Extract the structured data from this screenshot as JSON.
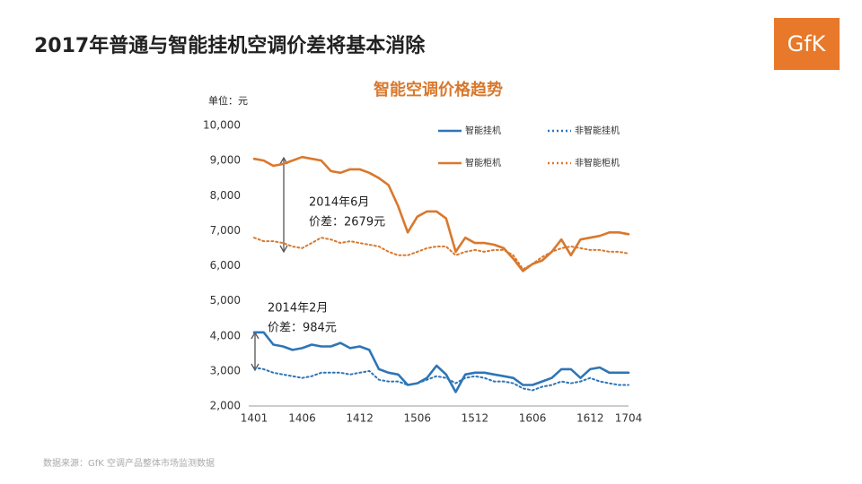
{
  "header": {
    "title": "2017年普通与智能挂机空调价差将基本消除",
    "logo": "GfK"
  },
  "chart_data": {
    "type": "line",
    "title": "智能空调价格趋势",
    "unit_label": "单位：元",
    "categories": [
      "1401",
      null,
      null,
      null,
      null,
      "1406",
      null,
      null,
      null,
      null,
      null,
      "1412",
      null,
      null,
      null,
      null,
      null,
      "1506",
      null,
      null,
      null,
      null,
      null,
      "1512",
      null,
      null,
      null,
      null,
      null,
      "1606",
      null,
      null,
      null,
      null,
      null,
      "1612",
      null,
      null,
      null,
      "1704"
    ],
    "ylim": [
      2000,
      10000
    ],
    "yticks": [
      {
        "value": 2000,
        "label": "2,000"
      },
      {
        "value": 3000,
        "label": "3,000"
      },
      {
        "value": 4000,
        "label": "4,000"
      },
      {
        "value": 5000,
        "label": "5,000"
      },
      {
        "value": 6000,
        "label": "6,000"
      },
      {
        "value": 7000,
        "label": "7,000"
      },
      {
        "value": 8000,
        "label": "8,000"
      },
      {
        "value": 9000,
        "label": "9,000"
      },
      {
        "value": 10000,
        "label": "10,000"
      }
    ],
    "series": [
      {
        "name": "智能挂机",
        "color": "#2e75b6",
        "dashed": false,
        "values": [
          4100,
          4100,
          3750,
          3700,
          3600,
          3650,
          3750,
          3700,
          3700,
          3800,
          3650,
          3700,
          3600,
          3050,
          2950,
          2900,
          2600,
          2650,
          2800,
          3150,
          2900,
          2400,
          2900,
          2950,
          2950,
          2900,
          2850,
          2800,
          2600,
          2600,
          2700,
          2800,
          3050,
          3050,
          2800,
          3050,
          3100,
          2950,
          2950,
          2950
        ]
      },
      {
        "name": "非智能挂机",
        "color": "#2e75b6",
        "dashed": true,
        "values": [
          3100,
          3050,
          2950,
          2900,
          2850,
          2800,
          2850,
          2950,
          2950,
          2950,
          2900,
          2950,
          3000,
          2750,
          2700,
          2700,
          2600,
          2650,
          2750,
          2850,
          2800,
          2650,
          2800,
          2850,
          2800,
          2700,
          2700,
          2650,
          2500,
          2450,
          2550,
          2600,
          2700,
          2650,
          2700,
          2800,
          2700,
          2650,
          2600,
          2600
        ]
      },
      {
        "name": "智能柜机",
        "color": "#d9782d",
        "dashed": false,
        "values": [
          9050,
          9000,
          8850,
          8900,
          9000,
          9100,
          9050,
          9000,
          8700,
          8650,
          8750,
          8750,
          8650,
          8500,
          8300,
          7700,
          6950,
          7400,
          7550,
          7550,
          7350,
          6400,
          6800,
          6650,
          6650,
          6600,
          6500,
          6200,
          5850,
          6050,
          6150,
          6400,
          6750,
          6300,
          6750,
          6800,
          6850,
          6950,
          6950,
          6900
        ]
      },
      {
        "name": "非智能柜机",
        "color": "#d9782d",
        "dashed": true,
        "values": [
          6800,
          6700,
          6700,
          6650,
          6550,
          6500,
          6650,
          6800,
          6750,
          6650,
          6700,
          6650,
          6600,
          6550,
          6400,
          6300,
          6300,
          6400,
          6500,
          6550,
          6550,
          6300,
          6400,
          6450,
          6400,
          6450,
          6450,
          6300,
          5900,
          6050,
          6250,
          6400,
          6500,
          6550,
          6500,
          6450,
          6450,
          6400,
          6400,
          6350
        ]
      }
    ],
    "annotations": [
      [
        "2014年6月",
        "价差：2679元"
      ],
      [
        "2014年2月",
        "价差：984元"
      ]
    ]
  },
  "footer": {
    "source": "数据来源：GfK 空调产品整体市场监测数据"
  }
}
